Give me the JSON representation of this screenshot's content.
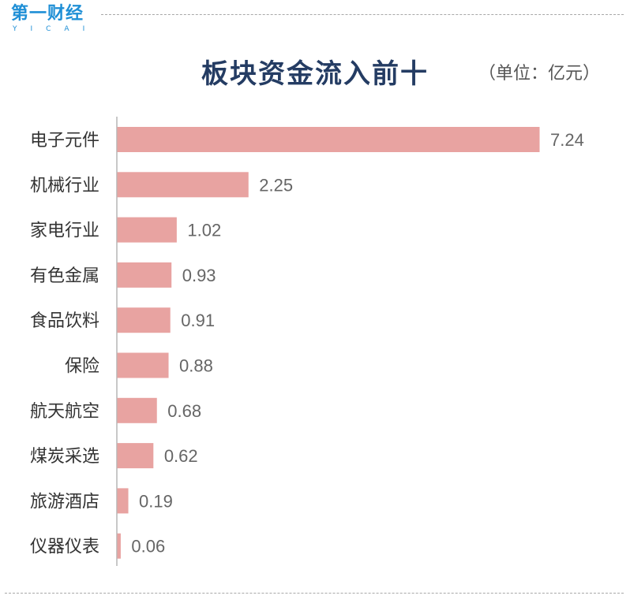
{
  "logo": {
    "text": "第一财经",
    "sub": "YICAI",
    "color": "#1f8fd6"
  },
  "header": {
    "title": "板块资金流入前十",
    "unit": "（单位：亿元）"
  },
  "chart_data": {
    "type": "bar",
    "orientation": "horizontal",
    "title": "板块资金流入前十",
    "unit": "（单位：亿元）",
    "categories": [
      "电子元件",
      "机械行业",
      "家电行业",
      "有色金属",
      "食品饮料",
      "保险",
      "航天航空",
      "煤炭采选",
      "旅游酒店",
      "仪器仪表"
    ],
    "values": [
      7.24,
      2.25,
      1.02,
      0.93,
      0.91,
      0.88,
      0.68,
      0.62,
      0.19,
      0.06
    ],
    "value_labels": [
      "7.24",
      "2.25",
      "1.02",
      "0.93",
      "0.91",
      "0.88",
      "0.68",
      "0.62",
      "0.19",
      "0.06"
    ],
    "xlim": [
      0,
      7.24
    ],
    "grid": false,
    "bar_color": "#e8a3a1",
    "axis_color": "#b5b5b5"
  }
}
